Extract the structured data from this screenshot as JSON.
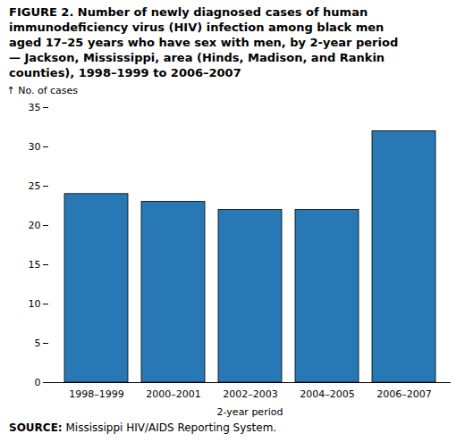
{
  "chart_data": {
    "type": "bar",
    "title": "FIGURE 2. Number of newly diagnosed cases of human\nimmunodeficiency virus (HIV) infection among black men\naged 17–25 years who have sex with men, by 2-year period\n— Jackson, Mississippi, area (Hinds, Madison, and Rankin\ncounties), 1998–1999 to 2006–2007",
    "categories": [
      "1998–1999",
      "2000–2001",
      "2002–2003",
      "2004–2005",
      "2006–2007"
    ],
    "values": [
      24,
      23,
      22,
      22,
      32
    ],
    "color": "#2878b5",
    "xlabel": "2-year period",
    "ylabel": "No. of cases",
    "ylim": [
      0,
      35
    ],
    "yticks": [
      0,
      5,
      10,
      15,
      20,
      25,
      30,
      35
    ],
    "grid": false,
    "caption": "SOURCE: Mississippi HIV/AIDS Reporting System."
  }
}
